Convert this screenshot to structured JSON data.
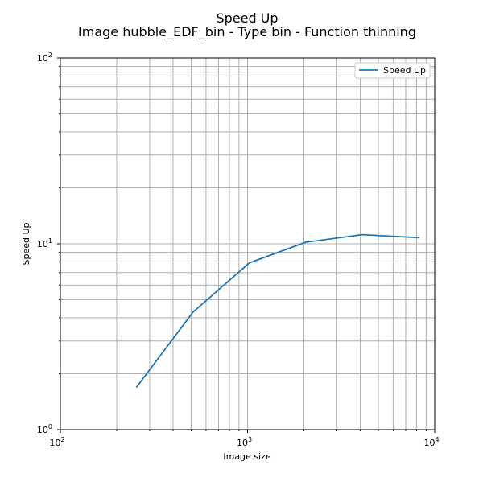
{
  "chart_data": {
    "type": "line",
    "title": "Speed Up",
    "subtitle": "Image hubble_EDF_bin - Type bin - Function thinning",
    "xlabel": "Image size",
    "ylabel": "Speed Up",
    "xscale": "log",
    "yscale": "log",
    "xlim": [
      100,
      10000
    ],
    "ylim": [
      1,
      100
    ],
    "grid": true,
    "legend_position": "top-right",
    "x_ticks": [
      {
        "base": "10",
        "exp": "2",
        "value": 100
      },
      {
        "base": "10",
        "exp": "3",
        "value": 1000
      },
      {
        "base": "10",
        "exp": "4",
        "value": 10000
      }
    ],
    "y_ticks": [
      {
        "base": "10",
        "exp": "0",
        "value": 1
      },
      {
        "base": "10",
        "exp": "1",
        "value": 10
      },
      {
        "base": "10",
        "exp": "2",
        "value": 100
      }
    ],
    "series": [
      {
        "name": "Speed Up",
        "color": "#1f77b4",
        "x": [
          256,
          512,
          1024,
          2048,
          4096,
          8192
        ],
        "y": [
          1.7,
          4.3,
          7.9,
          10.2,
          11.2,
          10.8
        ]
      }
    ]
  }
}
